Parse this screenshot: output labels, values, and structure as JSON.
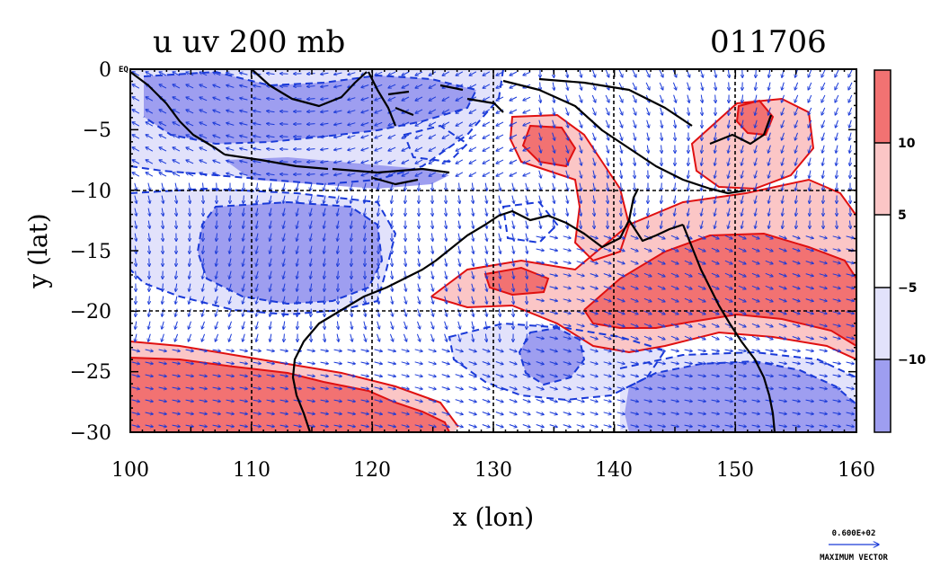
{
  "title_left": "u uv 200 mb",
  "title_right": "011706",
  "corner_label": "EQ",
  "x_axis": {
    "label": "x (lon)",
    "ticks": [
      "100",
      "110",
      "120",
      "130",
      "140",
      "150",
      "160"
    ],
    "range": [
      100,
      160
    ]
  },
  "y_axis": {
    "label": "y (lat)",
    "ticks": [
      "0",
      "−5",
      "−10",
      "−15",
      "−20",
      "−25",
      "−30"
    ],
    "range": [
      -30,
      0
    ]
  },
  "colorbar": {
    "labels": [
      "10",
      "5",
      "−5",
      "−10"
    ],
    "levels": [
      {
        "name": "above 10",
        "color": "#f27272"
      },
      {
        "name": "5 to 10",
        "color": "#fbc6c6"
      },
      {
        "name": "-5 to 5",
        "color": "#ffffff"
      },
      {
        "name": "-10 to -5",
        "color": "#e2e2fb"
      },
      {
        "name": "below -10",
        "color": "#9e9ef0"
      }
    ]
  },
  "vector_reference": {
    "value": "0.600E+02",
    "label": "MAXIMUM VECTOR"
  },
  "colors": {
    "positive_contour": "#e01010",
    "negative_contour": "#1a3ad8",
    "vector": "#1a3ad8",
    "coast": "#000000"
  }
}
